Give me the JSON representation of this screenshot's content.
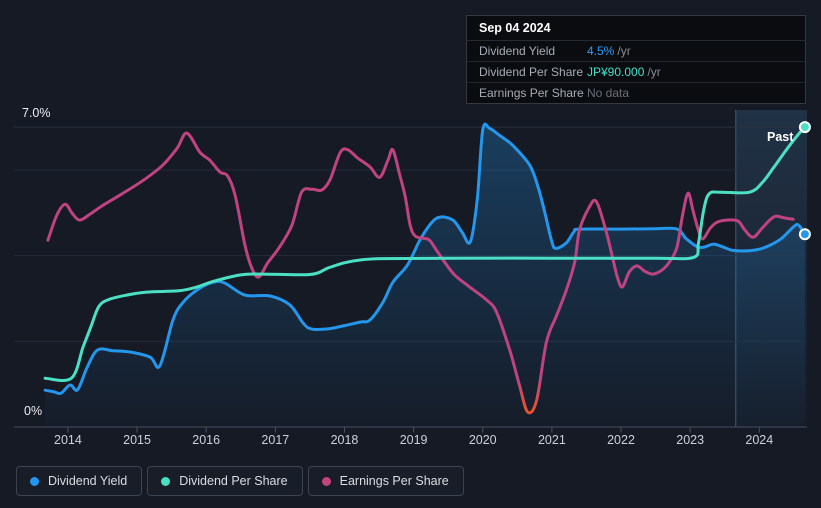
{
  "tooltip": {
    "date": "Sep 04 2024",
    "rows": [
      {
        "label": "Dividend Yield",
        "value": "4.5%",
        "unit": " /yr",
        "value_color": "#2f9bf3"
      },
      {
        "label": "Dividend Per Share",
        "value": "JP¥90.000",
        "unit": " /yr",
        "value_color": "#45e0c9"
      },
      {
        "label": "Earnings Per Share",
        "value": "No data",
        "unit": "",
        "value_color": "#69707b"
      }
    ]
  },
  "y_axis": {
    "top_label": "7.0%",
    "zero_label": "0%"
  },
  "past_label": "Past",
  "legend": {
    "items": [
      {
        "label": "Dividend Yield",
        "color": "#2196f3"
      },
      {
        "label": "Dividend Per Share",
        "color": "#45e0c2"
      },
      {
        "label": "Earnings Per Share",
        "color": "#c2447e"
      }
    ]
  },
  "chart_data": {
    "type": "line",
    "x_range": [
      2013.22,
      2024.69
    ],
    "y_range": [
      0,
      7.4
    ],
    "y_unit": "%",
    "y_gridlines": [
      2,
      4,
      6
    ],
    "y_top_label_value": 7.0,
    "x_ticks": [
      2014,
      2015,
      2016,
      2017,
      2018,
      2019,
      2020,
      2021,
      2022,
      2023,
      2024
    ],
    "past_region": {
      "start": 2023.66,
      "end": 2024.69
    },
    "latest": {
      "dividend_yield": "4.5%",
      "dividend_per_share": "JP¥90.000",
      "earnings_per_share": "No data"
    },
    "series": [
      {
        "name": "Dividend Yield",
        "color": "#2496ec",
        "fill": true,
        "end_marker": true,
        "points": [
          [
            2013.67,
            0.86
          ],
          [
            2013.8,
            0.82
          ],
          [
            2013.9,
            0.79
          ],
          [
            2014.03,
            0.98
          ],
          [
            2014.14,
            0.87
          ],
          [
            2014.28,
            1.4
          ],
          [
            2014.43,
            1.8
          ],
          [
            2014.65,
            1.78
          ],
          [
            2014.9,
            1.75
          ],
          [
            2015.19,
            1.63
          ],
          [
            2015.33,
            1.43
          ],
          [
            2015.52,
            2.5
          ],
          [
            2015.66,
            2.9
          ],
          [
            2015.87,
            3.2
          ],
          [
            2016.1,
            3.38
          ],
          [
            2016.27,
            3.36
          ],
          [
            2016.56,
            3.08
          ],
          [
            2016.92,
            3.06
          ],
          [
            2017.21,
            2.85
          ],
          [
            2017.4,
            2.43
          ],
          [
            2017.52,
            2.29
          ],
          [
            2017.76,
            2.29
          ],
          [
            2017.98,
            2.36
          ],
          [
            2018.23,
            2.45
          ],
          [
            2018.37,
            2.5
          ],
          [
            2018.56,
            2.92
          ],
          [
            2018.7,
            3.38
          ],
          [
            2018.91,
            3.78
          ],
          [
            2019.09,
            4.36
          ],
          [
            2019.25,
            4.75
          ],
          [
            2019.38,
            4.9
          ],
          [
            2019.57,
            4.83
          ],
          [
            2019.7,
            4.55
          ],
          [
            2019.82,
            4.32
          ],
          [
            2019.92,
            5.3
          ],
          [
            2020.0,
            6.93
          ],
          [
            2020.1,
            6.97
          ],
          [
            2020.25,
            6.8
          ],
          [
            2020.43,
            6.58
          ],
          [
            2020.68,
            6.11
          ],
          [
            2020.8,
            5.6
          ],
          [
            2020.9,
            4.99
          ],
          [
            2021.0,
            4.32
          ],
          [
            2021.06,
            4.17
          ],
          [
            2021.21,
            4.3
          ],
          [
            2021.32,
            4.56
          ],
          [
            2021.4,
            4.62
          ],
          [
            2022.0,
            4.62
          ],
          [
            2022.5,
            4.63
          ],
          [
            2022.81,
            4.62
          ],
          [
            2022.94,
            4.4
          ],
          [
            2023.1,
            4.21
          ],
          [
            2023.2,
            4.2
          ],
          [
            2023.34,
            4.27
          ],
          [
            2023.48,
            4.2
          ],
          [
            2023.6,
            4.13
          ],
          [
            2023.8,
            4.11
          ],
          [
            2024.0,
            4.15
          ],
          [
            2024.15,
            4.24
          ],
          [
            2024.32,
            4.4
          ],
          [
            2024.5,
            4.68
          ],
          [
            2024.57,
            4.71
          ],
          [
            2024.66,
            4.5
          ]
        ]
      },
      {
        "name": "Earnings Per Share",
        "color": "#bf4380",
        "dip_color": "#e8512c",
        "fill": false,
        "end_marker": false,
        "points": [
          [
            2013.71,
            4.36
          ],
          [
            2013.84,
            4.95
          ],
          [
            2013.96,
            5.2
          ],
          [
            2014.06,
            4.99
          ],
          [
            2014.17,
            4.83
          ],
          [
            2014.32,
            4.97
          ],
          [
            2014.51,
            5.18
          ],
          [
            2014.75,
            5.41
          ],
          [
            2015.09,
            5.76
          ],
          [
            2015.37,
            6.11
          ],
          [
            2015.58,
            6.51
          ],
          [
            2015.72,
            6.86
          ],
          [
            2015.91,
            6.41
          ],
          [
            2016.05,
            6.23
          ],
          [
            2016.2,
            5.95
          ],
          [
            2016.31,
            5.86
          ],
          [
            2016.42,
            5.4
          ],
          [
            2016.56,
            4.25
          ],
          [
            2016.66,
            3.71
          ],
          [
            2016.76,
            3.5
          ],
          [
            2016.89,
            3.83
          ],
          [
            2017.06,
            4.2
          ],
          [
            2017.24,
            4.71
          ],
          [
            2017.38,
            5.48
          ],
          [
            2017.53,
            5.55
          ],
          [
            2017.67,
            5.53
          ],
          [
            2017.79,
            5.77
          ],
          [
            2017.94,
            6.41
          ],
          [
            2018.05,
            6.47
          ],
          [
            2018.19,
            6.28
          ],
          [
            2018.37,
            6.07
          ],
          [
            2018.51,
            5.83
          ],
          [
            2018.63,
            6.23
          ],
          [
            2018.7,
            6.47
          ],
          [
            2018.8,
            5.88
          ],
          [
            2018.88,
            5.37
          ],
          [
            2018.95,
            4.71
          ],
          [
            2019.02,
            4.46
          ],
          [
            2019.13,
            4.41
          ],
          [
            2019.23,
            4.36
          ],
          [
            2019.33,
            4.13
          ],
          [
            2019.57,
            3.59
          ],
          [
            2019.81,
            3.27
          ],
          [
            2020.06,
            2.96
          ],
          [
            2020.2,
            2.68
          ],
          [
            2020.39,
            1.8
          ],
          [
            2020.53,
            0.98
          ],
          [
            2020.65,
            0.35
          ],
          [
            2020.78,
            0.63
          ],
          [
            2020.92,
            1.98
          ],
          [
            2021.07,
            2.61
          ],
          [
            2021.21,
            3.2
          ],
          [
            2021.33,
            3.85
          ],
          [
            2021.4,
            4.6
          ],
          [
            2021.54,
            5.13
          ],
          [
            2021.64,
            5.27
          ],
          [
            2021.76,
            4.71
          ],
          [
            2021.86,
            4.08
          ],
          [
            2021.95,
            3.48
          ],
          [
            2022.02,
            3.27
          ],
          [
            2022.12,
            3.62
          ],
          [
            2022.23,
            3.76
          ],
          [
            2022.34,
            3.64
          ],
          [
            2022.46,
            3.57
          ],
          [
            2022.59,
            3.66
          ],
          [
            2022.7,
            3.85
          ],
          [
            2022.81,
            4.2
          ],
          [
            2022.89,
            4.95
          ],
          [
            2022.97,
            5.46
          ],
          [
            2023.04,
            5.06
          ],
          [
            2023.11,
            4.64
          ],
          [
            2023.18,
            4.39
          ],
          [
            2023.29,
            4.64
          ],
          [
            2023.39,
            4.78
          ],
          [
            2023.53,
            4.83
          ],
          [
            2023.69,
            4.81
          ],
          [
            2023.79,
            4.6
          ],
          [
            2023.91,
            4.43
          ],
          [
            2024.04,
            4.64
          ],
          [
            2024.15,
            4.83
          ],
          [
            2024.24,
            4.92
          ],
          [
            2024.37,
            4.88
          ],
          [
            2024.49,
            4.85
          ]
        ]
      },
      {
        "name": "Dividend Per Share",
        "color": "#4be0c4",
        "fill": false,
        "end_marker": true,
        "points": [
          [
            2013.67,
            1.14
          ],
          [
            2014.05,
            1.14
          ],
          [
            2014.22,
            1.87
          ],
          [
            2014.33,
            2.33
          ],
          [
            2014.45,
            2.82
          ],
          [
            2014.6,
            2.98
          ],
          [
            2014.85,
            3.08
          ],
          [
            2015.14,
            3.15
          ],
          [
            2015.6,
            3.18
          ],
          [
            2015.87,
            3.27
          ],
          [
            2016.1,
            3.4
          ],
          [
            2016.5,
            3.55
          ],
          [
            2016.8,
            3.57
          ],
          [
            2017.5,
            3.56
          ],
          [
            2017.76,
            3.71
          ],
          [
            2017.99,
            3.83
          ],
          [
            2018.24,
            3.9
          ],
          [
            2018.56,
            3.93
          ],
          [
            2019.5,
            3.94
          ],
          [
            2021.0,
            3.94
          ],
          [
            2022.5,
            3.94
          ],
          [
            2023.05,
            3.96
          ],
          [
            2023.12,
            4.3
          ],
          [
            2023.2,
            5.1
          ],
          [
            2023.28,
            5.45
          ],
          [
            2023.45,
            5.48
          ],
          [
            2023.86,
            5.48
          ],
          [
            2024.05,
            5.72
          ],
          [
            2024.2,
            6.04
          ],
          [
            2024.36,
            6.4
          ],
          [
            2024.48,
            6.66
          ],
          [
            2024.58,
            6.86
          ],
          [
            2024.66,
            7.0
          ]
        ]
      }
    ]
  }
}
